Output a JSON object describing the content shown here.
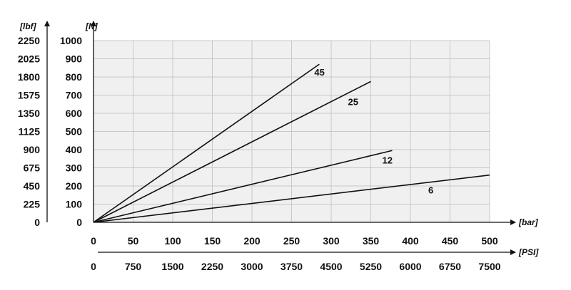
{
  "chart_data": {
    "type": "line",
    "grid": true,
    "plot_background": "#f0f0f0",
    "line_color": "#111111",
    "x_axis": {
      "unit_label": "[bar]",
      "range": [
        0,
        500
      ],
      "ticks": [
        "0",
        "50",
        "100",
        "150",
        "200",
        "250",
        "300",
        "350",
        "400",
        "450",
        "500"
      ],
      "tick_values": [
        0,
        50,
        100,
        150,
        200,
        250,
        300,
        350,
        400,
        450,
        500
      ]
    },
    "x2_axis": {
      "unit_label": "[PSI]",
      "range": [
        0,
        7500
      ],
      "ticks": [
        "0",
        "750",
        "1500",
        "2250",
        "3000",
        "3750",
        "4500",
        "5250",
        "6000",
        "6750",
        "7500"
      ],
      "tick_values": [
        0,
        750,
        1500,
        2250,
        3000,
        3750,
        4500,
        5250,
        6000,
        6750,
        7500
      ]
    },
    "y_axis": {
      "unit_label": "[N]",
      "range": [
        0,
        1000
      ],
      "ticks": [
        "0",
        "100",
        "200",
        "300",
        "400",
        "500",
        "600",
        "700",
        "800",
        "900",
        "1000"
      ],
      "tick_values": [
        0,
        100,
        200,
        300,
        400,
        500,
        600,
        700,
        800,
        900,
        1000
      ]
    },
    "y2_axis": {
      "unit_label": "[lbf]",
      "range": [
        0,
        2250
      ],
      "ticks": [
        "0",
        "225",
        "450",
        "675",
        "900",
        "1125",
        "1350",
        "1575",
        "1800",
        "2025",
        "2250"
      ],
      "tick_values": [
        0,
        225,
        450,
        675,
        900,
        1125,
        1350,
        1575,
        1800,
        2025,
        2250
      ]
    },
    "series": [
      {
        "name": "45",
        "x": [
          0,
          285
        ],
        "y": [
          0,
          870
        ]
      },
      {
        "name": "25",
        "x": [
          0,
          350
        ],
        "y": [
          0,
          775
        ]
      },
      {
        "name": "12",
        "x": [
          0,
          377
        ],
        "y": [
          0,
          395
        ]
      },
      {
        "name": "6",
        "x": [
          0,
          500
        ],
        "y": [
          0,
          260
        ]
      }
    ]
  }
}
